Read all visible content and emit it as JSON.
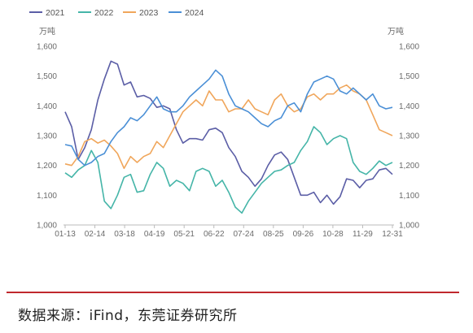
{
  "chart_data": {
    "type": "line",
    "x_tick_labels": [
      "01-13",
      "02-14",
      "03-18",
      "04-19",
      "05-21",
      "06-22",
      "07-24",
      "08-25",
      "09-26",
      "10-28",
      "11-29",
      "12-31"
    ],
    "ylim": [
      1000,
      1600
    ],
    "y_ticks": [
      "1,000",
      "1,100",
      "1,200",
      "1,300",
      "1,400",
      "1,500",
      "1,600"
    ],
    "left_unit": "万吨",
    "right_unit": "万吨",
    "legend_position": "top-left",
    "grid": false,
    "series": [
      {
        "name": "2021",
        "color": "#5b5ea6",
        "x": [
          0,
          0.02,
          0.04,
          0.06,
          0.08,
          0.1,
          0.12,
          0.14,
          0.16,
          0.18,
          0.2,
          0.22,
          0.24,
          0.26,
          0.28,
          0.3,
          0.32,
          0.34,
          0.36,
          0.38,
          0.4,
          0.42,
          0.44,
          0.46,
          0.48,
          0.5,
          0.52,
          0.54,
          0.56,
          0.58,
          0.6,
          0.62,
          0.64,
          0.66,
          0.68,
          0.7,
          0.72,
          0.74,
          0.76,
          0.78,
          0.8,
          0.82,
          0.84,
          0.86,
          0.88,
          0.9,
          0.92,
          0.94,
          0.96,
          0.98,
          1.0
        ],
        "values": [
          1380,
          1330,
          1220,
          1260,
          1320,
          1420,
          1490,
          1550,
          1540,
          1470,
          1480,
          1430,
          1435,
          1425,
          1395,
          1400,
          1390,
          1320,
          1275,
          1290,
          1290,
          1285,
          1320,
          1325,
          1310,
          1260,
          1230,
          1180,
          1160,
          1130,
          1155,
          1200,
          1235,
          1245,
          1220,
          1160,
          1100,
          1100,
          1110,
          1075,
          1100,
          1070,
          1095,
          1155,
          1150,
          1125,
          1150,
          1155,
          1185,
          1190,
          1170
        ]
      },
      {
        "name": "2022",
        "color": "#45b5a8",
        "x": [
          0,
          0.02,
          0.04,
          0.06,
          0.08,
          0.1,
          0.12,
          0.14,
          0.16,
          0.18,
          0.2,
          0.22,
          0.24,
          0.26,
          0.28,
          0.3,
          0.32,
          0.34,
          0.36,
          0.38,
          0.4,
          0.42,
          0.44,
          0.46,
          0.48,
          0.5,
          0.52,
          0.54,
          0.56,
          0.58,
          0.6,
          0.62,
          0.64,
          0.66,
          0.68,
          0.7,
          0.72,
          0.74,
          0.76,
          0.78,
          0.8,
          0.82,
          0.84,
          0.86,
          0.88,
          0.9,
          0.92,
          0.94,
          0.96,
          0.98,
          1.0
        ],
        "values": [
          1175,
          1160,
          1185,
          1200,
          1250,
          1210,
          1080,
          1055,
          1100,
          1160,
          1170,
          1110,
          1115,
          1170,
          1210,
          1190,
          1130,
          1150,
          1140,
          1115,
          1180,
          1190,
          1180,
          1130,
          1150,
          1110,
          1060,
          1040,
          1080,
          1110,
          1140,
          1160,
          1180,
          1185,
          1200,
          1210,
          1250,
          1280,
          1330,
          1310,
          1270,
          1290,
          1300,
          1290,
          1210,
          1180,
          1170,
          1190,
          1215,
          1200,
          1210
        ]
      },
      {
        "name": "2023",
        "color": "#f0a65b",
        "x": [
          0,
          0.02,
          0.04,
          0.06,
          0.08,
          0.1,
          0.12,
          0.14,
          0.16,
          0.18,
          0.2,
          0.22,
          0.24,
          0.26,
          0.28,
          0.3,
          0.32,
          0.34,
          0.36,
          0.38,
          0.4,
          0.42,
          0.44,
          0.46,
          0.48,
          0.5,
          0.52,
          0.54,
          0.56,
          0.58,
          0.6,
          0.62,
          0.64,
          0.66,
          0.68,
          0.7,
          0.72,
          0.74,
          0.76,
          0.78,
          0.8,
          0.82,
          0.84,
          0.86,
          0.88,
          0.9,
          0.92,
          0.94,
          0.96,
          0.98,
          1.0
        ],
        "values": [
          1205,
          1200,
          1230,
          1280,
          1290,
          1275,
          1285,
          1265,
          1240,
          1190,
          1230,
          1210,
          1230,
          1240,
          1280,
          1260,
          1300,
          1340,
          1380,
          1400,
          1420,
          1400,
          1450,
          1420,
          1420,
          1380,
          1390,
          1390,
          1420,
          1390,
          1380,
          1370,
          1420,
          1440,
          1400,
          1380,
          1390,
          1430,
          1440,
          1420,
          1440,
          1440,
          1460,
          1470,
          1450,
          1440,
          1420,
          1370,
          1320,
          1310,
          1300
        ]
      },
      {
        "name": "2024",
        "color": "#4a8fd6",
        "x": [
          0,
          0.02,
          0.04,
          0.06,
          0.08,
          0.1,
          0.12,
          0.14,
          0.16,
          0.18,
          0.2,
          0.22,
          0.24,
          0.26,
          0.28,
          0.3,
          0.32,
          0.34,
          0.36,
          0.38,
          0.4,
          0.42,
          0.44,
          0.46,
          0.48,
          0.5,
          0.52,
          0.54,
          0.56,
          0.58,
          0.6,
          0.62,
          0.64,
          0.66,
          0.68,
          0.7,
          0.72,
          0.74,
          0.76,
          0.78,
          0.8,
          0.82,
          0.84,
          0.86,
          0.88,
          0.9,
          0.92,
          0.94,
          0.96,
          0.98,
          1.0
        ],
        "values": [
          1270,
          1265,
          1220,
          1200,
          1210,
          1230,
          1240,
          1280,
          1310,
          1330,
          1360,
          1350,
          1370,
          1400,
          1430,
          1390,
          1380,
          1380,
          1400,
          1430,
          1450,
          1470,
          1490,
          1520,
          1500,
          1440,
          1400,
          1390,
          1380,
          1360,
          1340,
          1330,
          1350,
          1360,
          1400,
          1410,
          1380,
          1440,
          1480,
          1490,
          1500,
          1490,
          1450,
          1440,
          1460,
          1440,
          1420,
          1440,
          1400,
          1390,
          1395
        ]
      }
    ]
  },
  "source": {
    "text": "数据来源：iFind，东莞证券研究所"
  }
}
